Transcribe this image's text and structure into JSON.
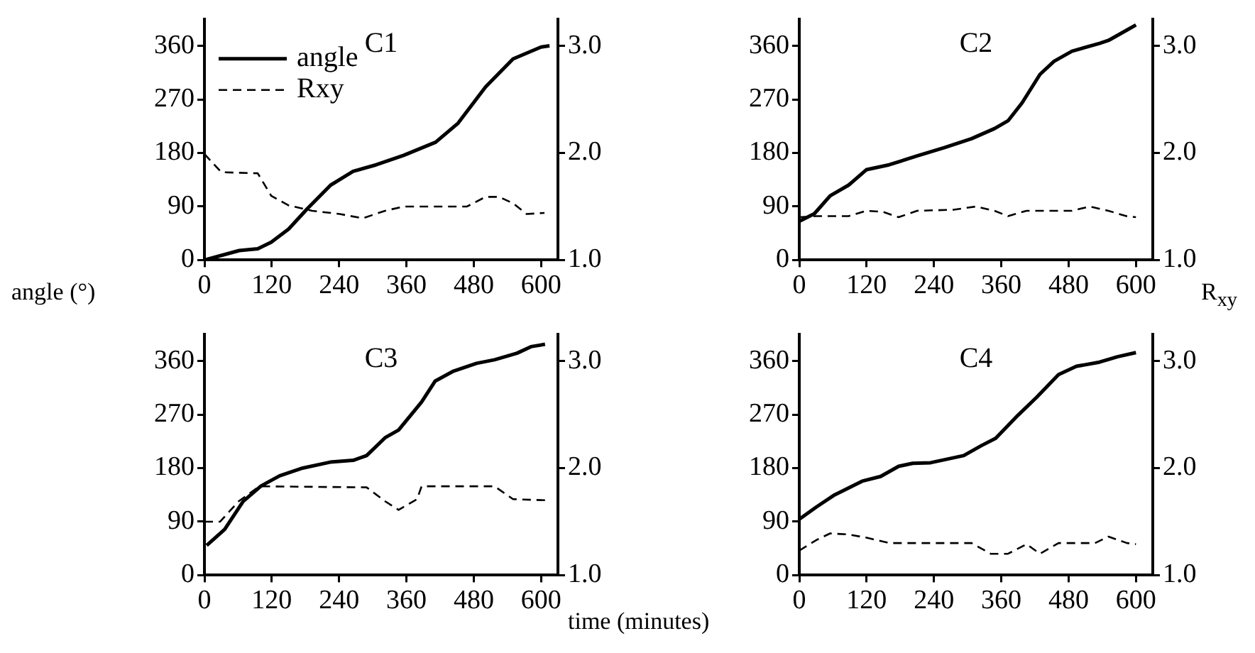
{
  "chart_data": [
    {
      "type": "line",
      "title": "C1",
      "ylabel": "angle (°)",
      "legend": "top left",
      "grid": false,
      "xlim": [
        0,
        630
      ],
      "xticks": [
        0,
        120,
        240,
        360,
        480,
        600
      ],
      "ylim": [
        0,
        405
      ],
      "yticks": [
        0,
        90,
        180,
        270,
        360
      ],
      "y2lim": [
        1.0,
        3.25
      ],
      "y2ticks": [
        {
          "value": 1,
          "label": "1.0"
        },
        {
          "value": 2,
          "label": "2.0"
        },
        {
          "value": 3,
          "label": "3.0"
        }
      ],
      "series": [
        {
          "name": "angle",
          "color": "#000000",
          "line_style": "solid",
          "x": [
            0,
            62,
            95,
            119,
            150,
            184,
            225,
            265,
            306,
            355,
            412,
            452,
            501,
            550,
            600,
            615
          ],
          "values": [
            0,
            16,
            19,
            30,
            52,
            87,
            126,
            149,
            160,
            176,
            198,
            230,
            291,
            338,
            358,
            360
          ]
        },
        {
          "name": "Rxy",
          "color": "#000000",
          "line_style": "dashed",
          "axis": "y2",
          "x": [
            0,
            30,
            95,
            119,
            150,
            192,
            241,
            282,
            322,
            355,
            468,
            501,
            525,
            550,
            574,
            606
          ],
          "values": [
            1.99,
            1.82,
            1.81,
            1.6,
            1.51,
            1.46,
            1.43,
            1.39,
            1.46,
            1.5,
            1.5,
            1.59,
            1.59,
            1.53,
            1.43,
            1.44
          ]
        }
      ]
    },
    {
      "type": "line",
      "title": "C2",
      "y2label": "R$_{xy}$",
      "grid": false,
      "xlim": [
        0,
        630
      ],
      "xticks": [
        0,
        120,
        240,
        360,
        480,
        600
      ],
      "ylim": [
        0,
        405
      ],
      "yticks": [
        0,
        90,
        180,
        270,
        360
      ],
      "y2lim": [
        1.0,
        3.25
      ],
      "y2ticks": [
        {
          "value": 1,
          "label": "1.0"
        },
        {
          "value": 2,
          "label": "2.0"
        },
        {
          "value": 3,
          "label": "3.0"
        }
      ],
      "series": [
        {
          "color": "#000000",
          "line_style": "solid",
          "x": [
            0,
            27,
            55,
            88,
            120,
            160,
            210,
            259,
            307,
            348,
            372,
            397,
            429,
            454,
            486,
            535,
            551,
            583,
            600
          ],
          "values": [
            65,
            78,
            108,
            126,
            152,
            160,
            175,
            189,
            204,
            221,
            234,
            264,
            312,
            334,
            351,
            364,
            369,
            386,
            395
          ]
        },
        {
          "color": "#000000",
          "line_style": "dashed",
          "axis": "y2",
          "x": [
            0,
            30,
            88,
            120,
            149,
            177,
            210,
            275,
            315,
            348,
            372,
            405,
            486,
            518,
            551,
            583,
            600
          ],
          "values": [
            1.4,
            1.41,
            1.41,
            1.46,
            1.45,
            1.4,
            1.46,
            1.47,
            1.5,
            1.46,
            1.41,
            1.46,
            1.46,
            1.5,
            1.46,
            1.41,
            1.4
          ]
        }
      ]
    },
    {
      "type": "line",
      "title": "C3",
      "xlabel": "time (minutes)",
      "grid": false,
      "xlim": [
        0,
        630
      ],
      "xticks": [
        0,
        120,
        240,
        360,
        480,
        600
      ],
      "ylim": [
        0,
        405
      ],
      "yticks": [
        0,
        90,
        180,
        270,
        360
      ],
      "y2lim": [
        1.0,
        3.25
      ],
      "y2ticks": [
        {
          "value": 1,
          "label": "1.0"
        },
        {
          "value": 2,
          "label": "2.0"
        },
        {
          "value": 3,
          "label": "3.0"
        }
      ],
      "series": [
        {
          "color": "#000000",
          "line_style": "solid",
          "x": [
            4,
            36,
            69,
            101,
            134,
            175,
            224,
            265,
            289,
            322,
            346,
            387,
            411,
            444,
            485,
            517,
            557,
            582,
            607
          ],
          "values": [
            50,
            77,
            124,
            150,
            167,
            180,
            190,
            193,
            201,
            231,
            244,
            291,
            326,
            343,
            356,
            362,
            373,
            384,
            388
          ]
        },
        {
          "color": "#000000",
          "line_style": "dashed",
          "axis": "y2",
          "x": [
            0,
            28,
            61,
            98,
            289,
            322,
            346,
            379,
            387,
            517,
            550,
            607
          ],
          "values": [
            1.5,
            1.5,
            1.69,
            1.83,
            1.82,
            1.69,
            1.61,
            1.71,
            1.83,
            1.83,
            1.71,
            1.7
          ]
        }
      ]
    },
    {
      "type": "line",
      "title": "C4",
      "grid": false,
      "xlim": [
        0,
        630
      ],
      "xticks": [
        0,
        120,
        240,
        360,
        480,
        600
      ],
      "ylim": [
        0,
        405
      ],
      "yticks": [
        0,
        90,
        180,
        270,
        360
      ],
      "y2lim": [
        1.0,
        3.25
      ],
      "y2ticks": [
        {
          "value": 1,
          "label": "1.0"
        },
        {
          "value": 2,
          "label": "2.0"
        },
        {
          "value": 3,
          "label": "3.0"
        }
      ],
      "series": [
        {
          "color": "#000000",
          "line_style": "solid",
          "x": [
            0,
            31,
            63,
            112,
            145,
            177,
            202,
            234,
            293,
            325,
            350,
            390,
            423,
            462,
            494,
            535,
            567,
            600
          ],
          "values": [
            94,
            115,
            135,
            158,
            166,
            183,
            188,
            189,
            201,
            218,
            230,
            269,
            299,
            337,
            351,
            358,
            367,
            374
          ]
        },
        {
          "color": "#000000",
          "line_style": "dashed",
          "axis": "y2",
          "x": [
            0,
            31,
            55,
            88,
            120,
            161,
            307,
            341,
            372,
            405,
            429,
            462,
            527,
            551,
            584,
            600
          ],
          "values": [
            1.23,
            1.33,
            1.39,
            1.38,
            1.35,
            1.3,
            1.3,
            1.2,
            1.2,
            1.29,
            1.2,
            1.3,
            1.3,
            1.36,
            1.3,
            1.29
          ]
        }
      ]
    }
  ]
}
